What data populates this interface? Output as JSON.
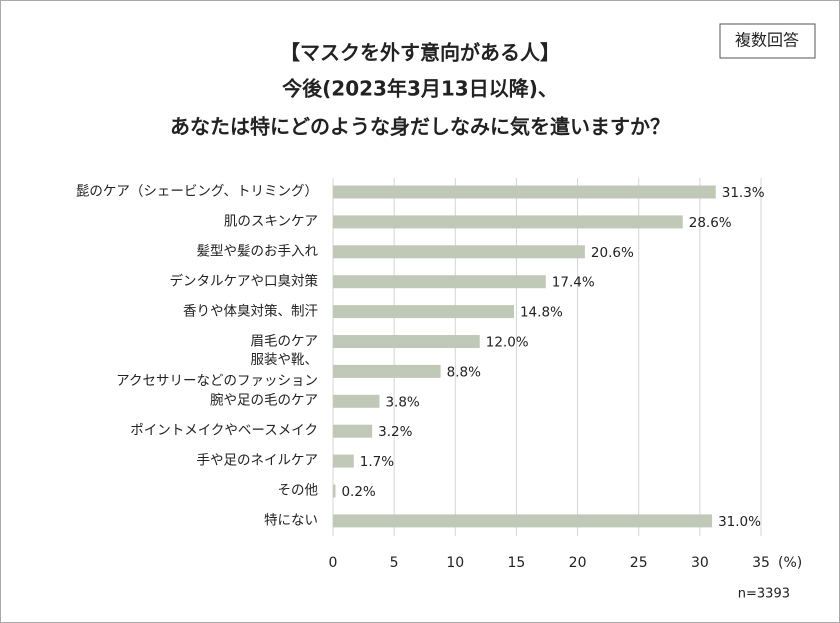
{
  "badge": "複数回答",
  "chart_data": {
    "type": "barh",
    "title": [
      "【マスクを外す意向がある人】",
      "今後(2023年3月13日以降)、",
      "あなたは特にどのような身だしなみに気を遣いますか？"
    ],
    "categories": [
      "髭のケア（シェービング、トリミング）",
      "肌のスキンケア",
      "髪型や髪のお手入れ",
      "デンタルケアや口臭対策",
      "香りや体臭対策、制汗",
      "眉毛のケア",
      "服装や靴、\nアクセサリーなどのファッション",
      "腕や足の毛のケア",
      "ポイントメイクやベースメイク",
      "手や足のネイルケア",
      "その他",
      "特にない"
    ],
    "values": [
      31.3,
      28.6,
      20.6,
      17.4,
      14.8,
      12.0,
      8.8,
      3.8,
      3.2,
      1.7,
      0.2,
      31.0
    ],
    "value_labels": [
      "31.3%",
      "28.6%",
      "20.6%",
      "17.4%",
      "14.8%",
      "12.0%",
      "8.8%",
      "3.8%",
      "3.2%",
      "1.7%",
      "0.2%",
      "31.0%"
    ],
    "color": "#c0c9b7",
    "xlim": [
      0,
      35
    ],
    "xticks": [
      0,
      5,
      10,
      15,
      20,
      25,
      30,
      35
    ],
    "grid": true,
    "x_label": "(%)",
    "note": "n=3393"
  }
}
